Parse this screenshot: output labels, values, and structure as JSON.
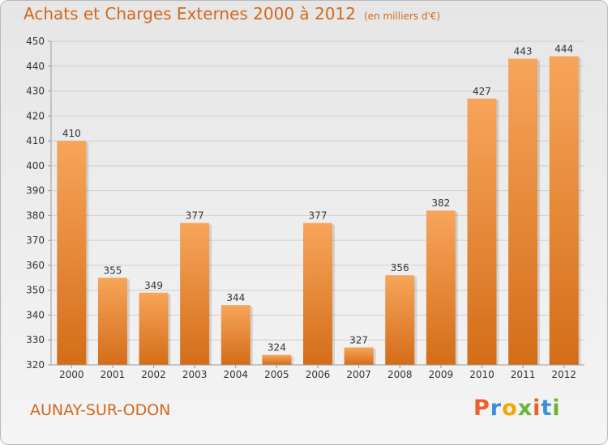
{
  "title": "Achats et Charges Externes 2000 à 2012",
  "subtitle": "(en milliers d'€)",
  "city": "AUNAY-SUR-ODON",
  "logo": {
    "letters": [
      "P",
      "r",
      "o",
      "x",
      "i",
      "t",
      "i"
    ],
    "colors": [
      "#e8622a",
      "#3a8fd6",
      "#f2a700",
      "#6bb43a",
      "#e8622a",
      "#3a8fd6",
      "#6bb43a"
    ]
  },
  "colors": {
    "bar_top": "#f7a55a",
    "bar_bottom": "#d46d18",
    "accent": "#d2691e"
  },
  "chart_data": {
    "type": "bar",
    "categories": [
      "2000",
      "2001",
      "2002",
      "2003",
      "2004",
      "2005",
      "2006",
      "2007",
      "2008",
      "2009",
      "2010",
      "2011",
      "2012"
    ],
    "values": [
      410,
      355,
      349,
      377,
      344,
      324,
      377,
      327,
      356,
      382,
      427,
      443,
      444
    ],
    "ylim": [
      320,
      450
    ],
    "yticks": [
      320,
      330,
      340,
      350,
      360,
      370,
      380,
      390,
      400,
      410,
      420,
      430,
      440,
      450
    ],
    "grid": true
  }
}
